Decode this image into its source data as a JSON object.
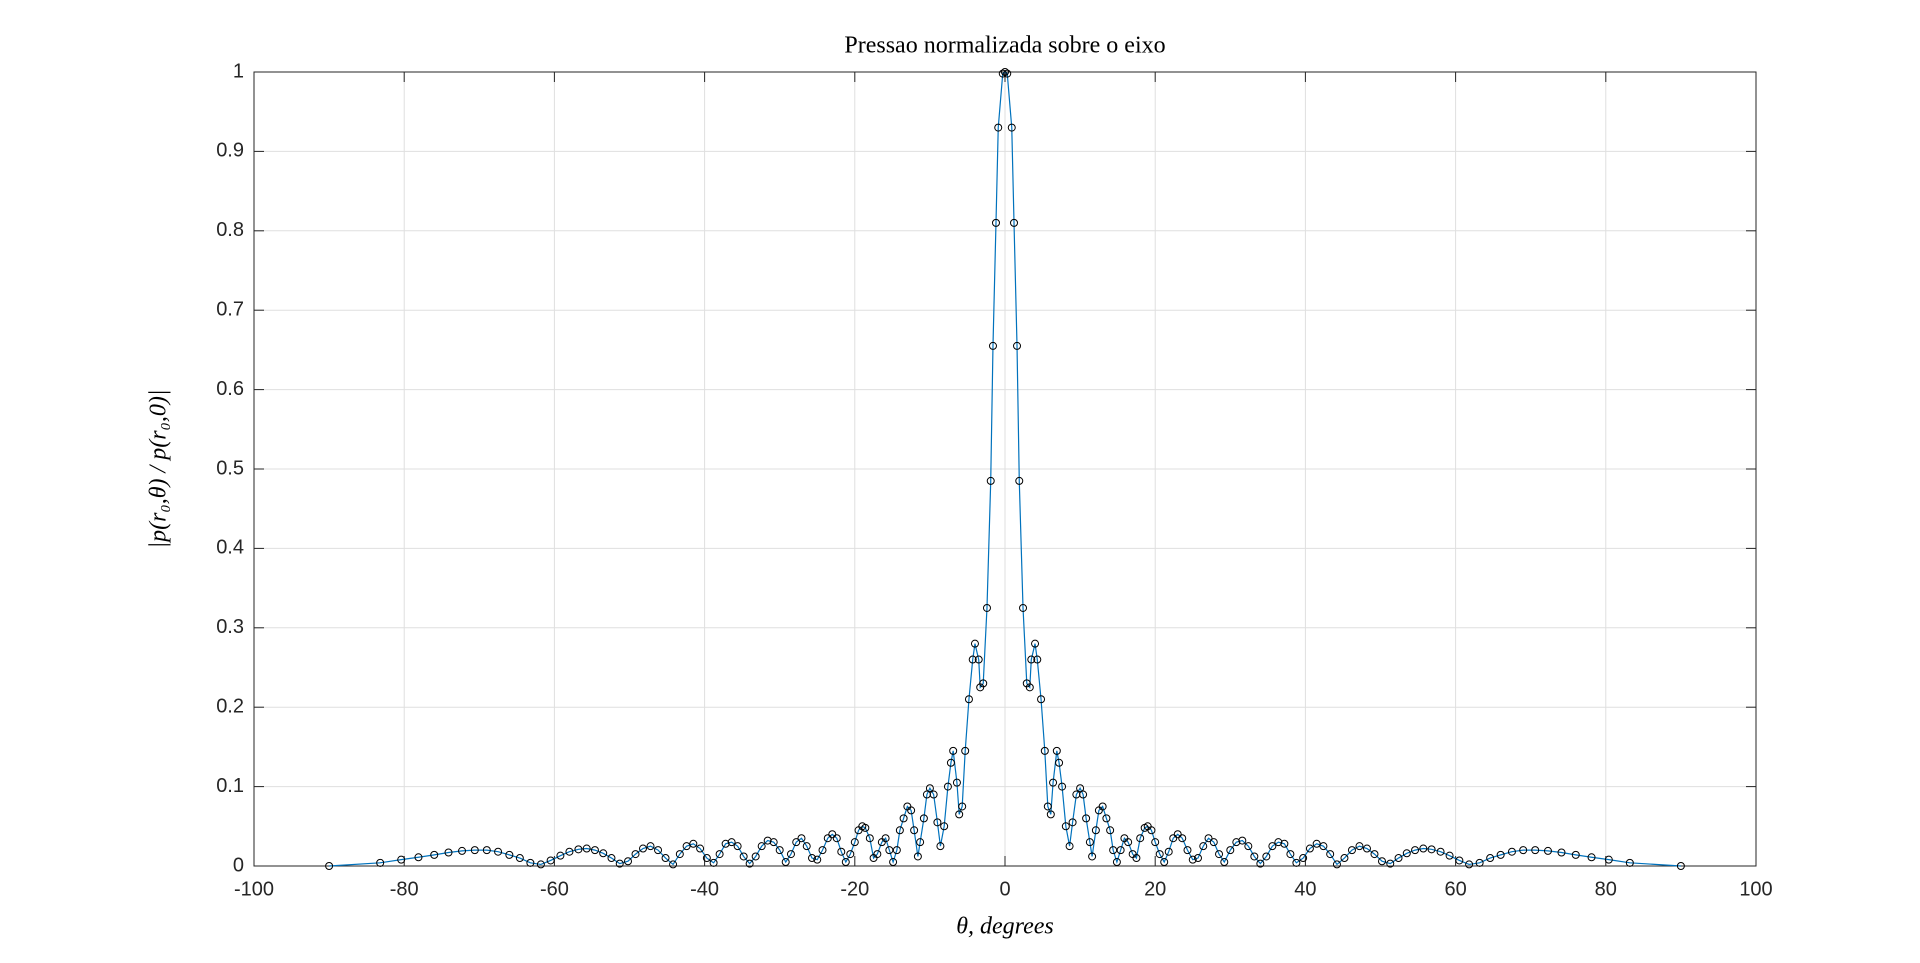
{
  "chart_data": {
    "type": "line",
    "title": "Pressao normalizada sobre o eixo",
    "xlabel": "θ, degrees",
    "ylabel": "|p(r₀,θ) / p(r₀,0)|",
    "x": [
      -90,
      -83.2,
      -80.4,
      -78.1,
      -76.0,
      -74.1,
      -72.3,
      -70.6,
      -69.0,
      -67.5,
      -66.0,
      -64.6,
      -63.2,
      -61.8,
      -60.5,
      -59.2,
      -58,
      -56.8,
      -55.7,
      -54.6,
      -53.5,
      -52.4,
      -51.3,
      -50.2,
      -49.2,
      -48.2,
      -47.2,
      -46.2,
      -45.2,
      -44.2,
      -43.3,
      -42.4,
      -41.5,
      -40.6,
      -39.7,
      -38.8,
      -38.0,
      -37.2,
      -36.4,
      -35.6,
      -34.8,
      -34.0,
      -33.2,
      -32.4,
      -31.6,
      -30.8,
      -30.0,
      -29.2,
      -28.5,
      -27.8,
      -27.1,
      -26.4,
      -25.7,
      -25.0,
      -24.3,
      -23.6,
      -23.0,
      -22.4,
      -21.8,
      -21.2,
      -20.6,
      -20.0,
      -19.5,
      -19.0,
      -18.6,
      -18.0,
      -17.5,
      -17.0,
      -16.4,
      -15.9,
      -15.4,
      -14.9,
      -14.4,
      -14.0,
      -13.5,
      -13.0,
      -12.5,
      -12.1,
      -11.6,
      -11.3,
      -10.8,
      -10.4,
      -10.0,
      -9.5,
      -9.0,
      -8.6,
      -8.1,
      -7.6,
      -7.2,
      -6.9,
      -6.4,
      -6.1,
      -5.7,
      -5.3,
      -4.8,
      -4.3,
      -4.0,
      -3.5,
      -3.3,
      -2.9,
      -2.4,
      -1.9,
      -1.6,
      -1.2,
      -0.9,
      -0.3,
      0,
      0.3,
      0.9,
      1.2,
      1.6,
      1.9,
      2.4,
      2.9,
      3.3,
      3.5,
      4.0,
      4.3,
      4.8,
      5.3,
      5.7,
      6.1,
      6.4,
      6.9,
      7.2,
      7.6,
      8.1,
      8.6,
      9.0,
      9.5,
      10.0,
      10.4,
      10.8,
      11.3,
      11.6,
      12.1,
      12.5,
      13.0,
      13.5,
      14.0,
      14.4,
      14.9,
      15.4,
      15.9,
      16.4,
      17.0,
      17.5,
      18.0,
      18.6,
      19.0,
      19.5,
      20.0,
      20.6,
      21.2,
      21.8,
      22.4,
      23.0,
      23.6,
      24.3,
      25.0,
      25.7,
      26.4,
      27.1,
      27.8,
      28.5,
      29.2,
      30.0,
      30.8,
      31.6,
      32.4,
      33.2,
      34.0,
      34.8,
      35.6,
      36.4,
      37.2,
      38.0,
      38.8,
      39.7,
      40.6,
      41.5,
      42.4,
      43.3,
      44.2,
      45.2,
      46.2,
      47.2,
      48.2,
      49.2,
      50.2,
      51.3,
      52.4,
      53.5,
      54.6,
      55.7,
      56.8,
      58,
      59.2,
      60.5,
      61.8,
      63.2,
      64.6,
      66.0,
      67.5,
      69.0,
      70.6,
      72.3,
      74.1,
      76.0,
      78.1,
      80.4,
      83.2,
      90
    ],
    "values": [
      0,
      0.004,
      0.008,
      0.011,
      0.014,
      0.017,
      0.019,
      0.02,
      0.02,
      0.018,
      0.014,
      0.01,
      0.004,
      0.002,
      0.007,
      0.013,
      0.018,
      0.021,
      0.022,
      0.02,
      0.016,
      0.01,
      0.003,
      0.006,
      0.015,
      0.022,
      0.025,
      0.02,
      0.01,
      0.002,
      0.015,
      0.025,
      0.028,
      0.022,
      0.01,
      0.004,
      0.015,
      0.028,
      0.03,
      0.025,
      0.012,
      0.003,
      0.012,
      0.025,
      0.032,
      0.03,
      0.02,
      0.005,
      0.015,
      0.03,
      0.035,
      0.025,
      0.01,
      0.008,
      0.02,
      0.035,
      0.04,
      0.035,
      0.018,
      0.005,
      0.015,
      0.03,
      0.045,
      0.05,
      0.048,
      0.035,
      0.01,
      0.015,
      0.03,
      0.035,
      0.02,
      0.005,
      0.02,
      0.045,
      0.06,
      0.075,
      0.07,
      0.045,
      0.012,
      0.03,
      0.06,
      0.09,
      0.098,
      0.09,
      0.055,
      0.025,
      0.05,
      0.1,
      0.13,
      0.145,
      0.105,
      0.065,
      0.075,
      0.145,
      0.21,
      0.26,
      0.28,
      0.26,
      0.225,
      0.23,
      0.325,
      0.485,
      0.655,
      0.81,
      0.93,
      0.998,
      1.0,
      0.998,
      0.93,
      0.81,
      0.655,
      0.485,
      0.325,
      0.23,
      0.225,
      0.26,
      0.28,
      0.26,
      0.21,
      0.145,
      0.075,
      0.065,
      0.105,
      0.145,
      0.13,
      0.1,
      0.05,
      0.025,
      0.055,
      0.09,
      0.098,
      0.09,
      0.06,
      0.03,
      0.012,
      0.045,
      0.07,
      0.075,
      0.06,
      0.045,
      0.02,
      0.005,
      0.02,
      0.035,
      0.03,
      0.015,
      0.01,
      0.035,
      0.048,
      0.05,
      0.045,
      0.03,
      0.015,
      0.005,
      0.018,
      0.035,
      0.04,
      0.035,
      0.02,
      0.008,
      0.01,
      0.025,
      0.035,
      0.03,
      0.015,
      0.005,
      0.02,
      0.03,
      0.032,
      0.025,
      0.012,
      0.003,
      0.012,
      0.025,
      0.03,
      0.028,
      0.015,
      0.004,
      0.01,
      0.022,
      0.028,
      0.025,
      0.015,
      0.002,
      0.01,
      0.02,
      0.025,
      0.022,
      0.015,
      0.006,
      0.003,
      0.01,
      0.016,
      0.02,
      0.022,
      0.021,
      0.018,
      0.013,
      0.007,
      0.002,
      0.004,
      0.01,
      0.014,
      0.018,
      0.02,
      0.02,
      0.019,
      0.017,
      0.014,
      0.011,
      0.008,
      0.004,
      0
    ],
    "color": "#0072bd",
    "marker_color": "#000000",
    "xlim": [
      -100,
      100
    ],
    "xticks": [
      -100,
      -80,
      -60,
      -40,
      -20,
      0,
      20,
      40,
      60,
      80,
      100
    ],
    "ylim": [
      0,
      1
    ],
    "yticks": [
      0,
      0.1,
      0.2,
      0.3,
      0.4,
      0.5,
      0.6,
      0.7,
      0.8,
      0.9,
      1
    ],
    "grid": true
  }
}
